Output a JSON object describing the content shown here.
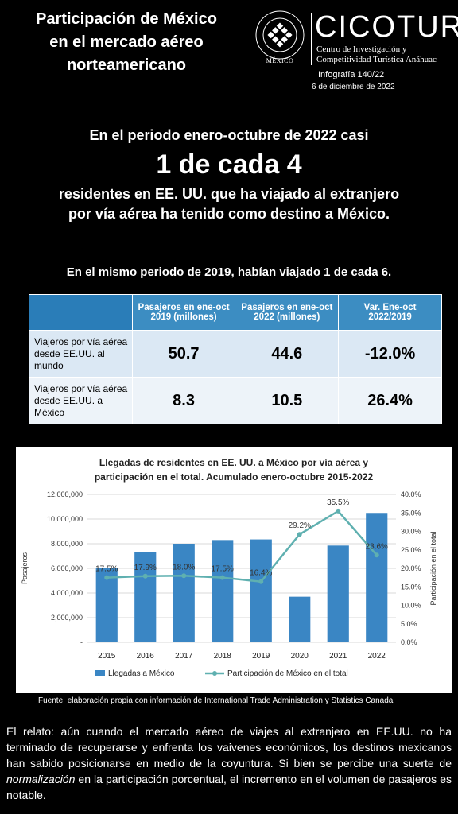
{
  "header": {
    "title_lines": [
      "Participación de México",
      "en el mercado aéreo",
      "norteamericano"
    ],
    "logo_text": "MÉXICO",
    "brand": "CICOTUR",
    "brand_sub1": "Centro de Investigación y",
    "brand_sub2": "Competitividad Turística Anáhuac",
    "infografia": "Infografía 140/22",
    "date": "6 de diciembre de 2022"
  },
  "headline": {
    "lead": "En el periodo enero-octubre de 2022 casi",
    "big": "1 de cada 4",
    "rest": "residentes en EE. UU. que ha viajado al extranjero por vía aérea ha tenido como destino a México.",
    "note": "En el mismo periodo de 2019, habían viajado 1 de cada 6."
  },
  "table": {
    "headers": [
      "",
      "Pasajeros en ene-oct 2019 (millones)",
      "Pasajeros en ene-oct 2022 (millones)",
      "Var. Ene-oct 2022/2019"
    ],
    "rows": [
      {
        "label": "Viajeros por vía aérea desde EE.UU. al mundo",
        "v2019": "50.7",
        "v2022": "44.6",
        "var": "-12.0%"
      },
      {
        "label": "Viajeros por vía aérea desde EE.UU. a México",
        "v2019": "8.3",
        "v2022": "10.5",
        "var": "26.4%"
      }
    ]
  },
  "chart_data": {
    "type": "bar",
    "title": "Llegadas de residentes en EE. UU. a México por vía aérea y participación en el total. Acumulado enero-octubre 2015-2022",
    "categories": [
      "2015",
      "2016",
      "2017",
      "2018",
      "2019",
      "2020",
      "2021",
      "2022"
    ],
    "series": [
      {
        "name": "Llegadas a México",
        "type": "bar",
        "axis": "left",
        "color": "#3a86c4",
        "values": [
          6000000,
          7300000,
          8000000,
          8300000,
          8350000,
          3700000,
          7850000,
          10500000
        ]
      },
      {
        "name": "Participación de México en el total",
        "type": "line",
        "axis": "right",
        "color": "#5fb0b0",
        "values": [
          17.5,
          17.9,
          18.0,
          17.5,
          16.4,
          29.2,
          35.5,
          23.6
        ],
        "labels": [
          "17.5%",
          "17.9%",
          "18.0%",
          "17.5%",
          "16.4%",
          "29.2%",
          "35.5%",
          "23.6%"
        ]
      }
    ],
    "ylabel": "Pasajeros",
    "y2label": "Participación en el total",
    "ylim": [
      0,
      12000000
    ],
    "y2lim": [
      0,
      40
    ],
    "yticks": [
      "-",
      "2,000,000",
      "4,000,000",
      "6,000,000",
      "8,000,000",
      "10,000,000",
      "12,000,000"
    ],
    "y2ticks": [
      "0.0%",
      "5.0%",
      "10.0%",
      "15.0%",
      "20.0%",
      "25.0%",
      "30.0%",
      "35.0%",
      "40.0%"
    ],
    "legend": "bottom"
  },
  "source": "Fuente: elaboración propia con información de International Trade Administration y Statistics Canada",
  "story": {
    "part1": "El relato: aún cuando el mercado aéreo de viajes al extranjero en EE.UU. no ha terminado de recuperarse y enfrenta los vaivenes económicos, los destinos mexicanos han sabido posicionarse en medio de la coyuntura. Si bien se percibe una suerte de ",
    "emph": "normalización",
    "part2": " en la participación porcentual, el incremento en el volumen de pasajeros es notable."
  }
}
